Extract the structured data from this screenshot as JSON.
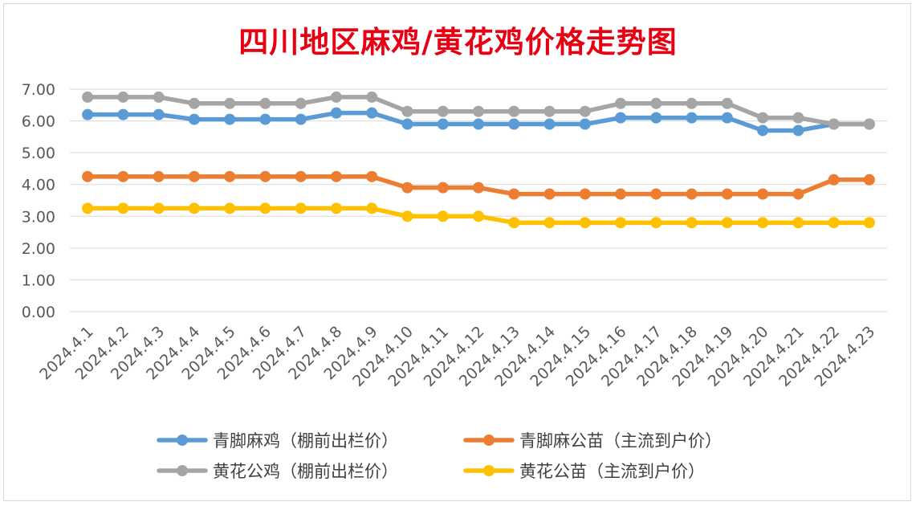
{
  "chart_data": {
    "type": "line",
    "title": "四川地区麻鸡/黄花鸡价格走势图",
    "xlabel": "",
    "ylabel": "",
    "ylim": [
      0,
      7
    ],
    "yticks": [
      "0.00",
      "1.00",
      "2.00",
      "3.00",
      "4.00",
      "5.00",
      "6.00",
      "7.00"
    ],
    "grid": true,
    "legend_position": "bottom",
    "categories": [
      "2024.4.1",
      "2024.4.2",
      "2024.4.3",
      "2024.4.4",
      "2024.4.5",
      "2024.4.6",
      "2024.4.7",
      "2024.4.8",
      "2024.4.9",
      "2024.4.10",
      "2024.4.11",
      "2024.4.12",
      "2024.4.13",
      "2024.4.14",
      "2024.4.15",
      "2024.4.16",
      "2024.4.17",
      "2024.4.18",
      "2024.4.19",
      "2024.4.20",
      "2024.4.21",
      "2024.4.22",
      "2024.4.23"
    ],
    "series": [
      {
        "name": "青脚麻鸡（棚前出栏价）",
        "color": "#5b9bd5",
        "values": [
          6.2,
          6.2,
          6.2,
          6.05,
          6.05,
          6.05,
          6.05,
          6.25,
          6.25,
          5.9,
          5.9,
          5.9,
          5.9,
          5.9,
          5.9,
          6.1,
          6.1,
          6.1,
          6.1,
          5.7,
          5.7,
          5.9,
          5.9
        ]
      },
      {
        "name": "青脚麻公苗（主流到户价）",
        "color": "#ed7d31",
        "values": [
          4.25,
          4.25,
          4.25,
          4.25,
          4.25,
          4.25,
          4.25,
          4.25,
          4.25,
          3.9,
          3.9,
          3.9,
          3.7,
          3.7,
          3.7,
          3.7,
          3.7,
          3.7,
          3.7,
          3.7,
          3.7,
          4.15,
          4.15
        ]
      },
      {
        "name": "黄花公鸡（棚前出栏价）",
        "color": "#a5a5a5",
        "values": [
          6.75,
          6.75,
          6.75,
          6.55,
          6.55,
          6.55,
          6.55,
          6.75,
          6.75,
          6.3,
          6.3,
          6.3,
          6.3,
          6.3,
          6.3,
          6.55,
          6.55,
          6.55,
          6.55,
          6.1,
          6.1,
          5.9,
          5.9
        ]
      },
      {
        "name": "黄花公苗（主流到户价）",
        "color": "#ffc000",
        "values": [
          3.25,
          3.25,
          3.25,
          3.25,
          3.25,
          3.25,
          3.25,
          3.25,
          3.25,
          3.0,
          3.0,
          3.0,
          2.8,
          2.8,
          2.8,
          2.8,
          2.8,
          2.8,
          2.8,
          2.8,
          2.8,
          2.8,
          2.8
        ]
      }
    ]
  }
}
